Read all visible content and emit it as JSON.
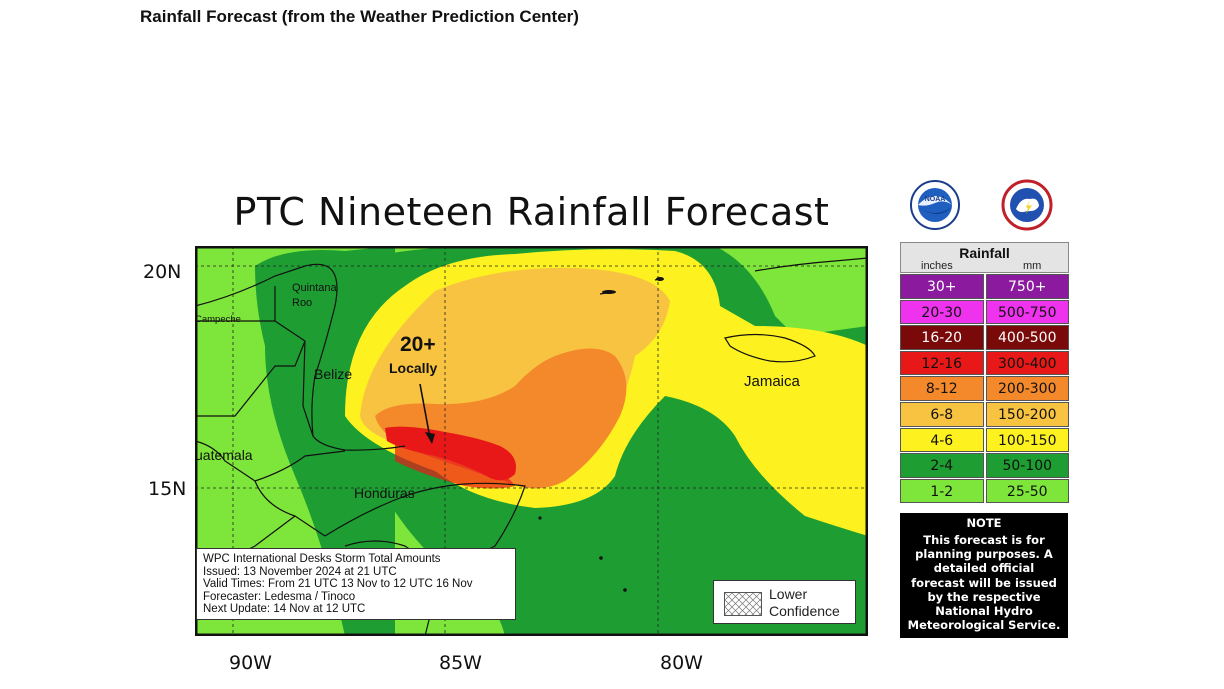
{
  "page": {
    "heading": "Rainfall Forecast (from the Weather Prediction Center)"
  },
  "map": {
    "title": "PTC Nineteen Rainfall Forecast",
    "lat_labels": {
      "n20": "20N",
      "n15": "15N"
    },
    "lon_labels": {
      "w90": "90W",
      "w85": "85W",
      "w80": "80W"
    },
    "places": {
      "quintana_roo": "Quintana Roo",
      "campeche": "Campeche",
      "belize": "Belize",
      "guatemala": "uatemala",
      "honduras": "Honduras",
      "jamaica": "Jamaica"
    },
    "annotation": {
      "amount": "20+",
      "qualifier": "Locally"
    },
    "info": {
      "line1": "WPC International Desks Storm Total Amounts",
      "line2": "Issued:  13 November 2024 at 21 UTC",
      "line3": "Valid Times:  From 21 UTC 13 Nov  to  12 UTC 16 Nov",
      "line4": "Forecaster:  Ledesma / Tinoco",
      "line5": "Next Update: 14 Nov at 12 UTC"
    },
    "confidence": {
      "line1": "Lower",
      "line2": "Confidence"
    }
  },
  "logos": {
    "noaa": {
      "icon": "noaa-logo-icon",
      "text": "NOAA"
    },
    "nws": {
      "icon": "nws-logo-icon"
    }
  },
  "legend": {
    "title": "Rainfall",
    "col_inches": "inches",
    "col_mm": "mm",
    "rows": [
      {
        "inches": "30+",
        "mm": "750+",
        "color": "#8c1a9e",
        "text": "#ffffff"
      },
      {
        "inches": "20-30",
        "mm": "500-750",
        "color": "#ee32ee",
        "text": "#111111"
      },
      {
        "inches": "16-20",
        "mm": "400-500",
        "color": "#7a0a0a",
        "text": "#ffffff"
      },
      {
        "inches": "12-16",
        "mm": "300-400",
        "color": "#e81818",
        "text": "#111111"
      },
      {
        "inches": "8-12",
        "mm": "200-300",
        "color": "#f4892c",
        "text": "#111111"
      },
      {
        "inches": "6-8",
        "mm": "150-200",
        "color": "#f8c340",
        "text": "#111111"
      },
      {
        "inches": "4-6",
        "mm": "100-150",
        "color": "#fdf220",
        "text": "#111111"
      },
      {
        "inches": "2-4",
        "mm": "50-100",
        "color": "#1e9e32",
        "text": "#111111"
      },
      {
        "inches": "1-2",
        "mm": "25-50",
        "color": "#7ee63a",
        "text": "#111111"
      }
    ]
  },
  "note": {
    "title": "NOTE",
    "text": "This forecast is for planning purposes. A detailed official forecast will be issued by the respective National Hydro Meteorological Service."
  }
}
